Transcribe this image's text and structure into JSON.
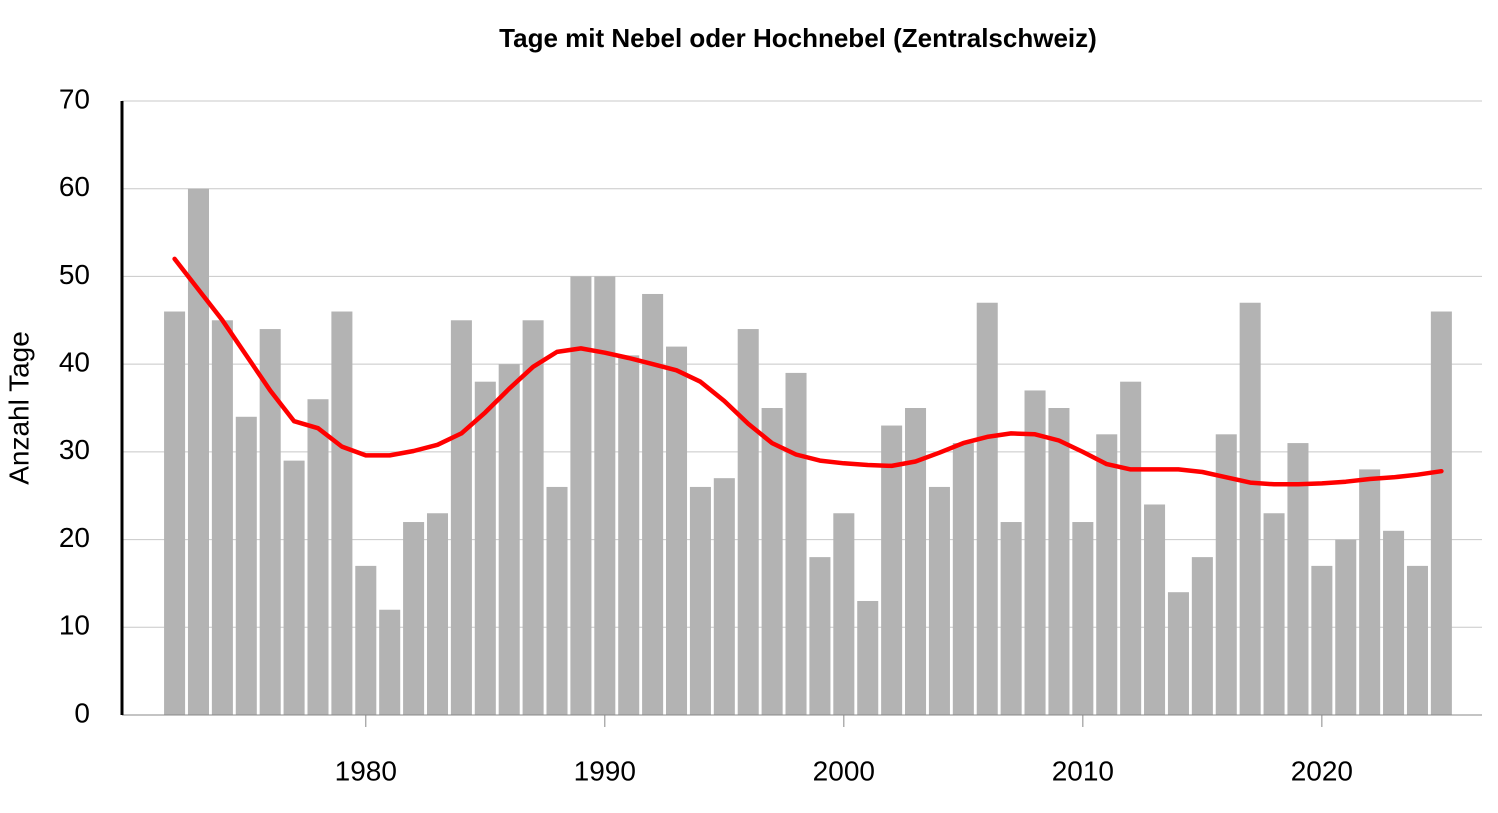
{
  "chart_data": {
    "type": "bar",
    "title": "Tage mit Nebel oder Hochnebel (Zentralschweiz)",
    "y_label": "Anzahl Tage",
    "x": [
      1972,
      1973,
      1974,
      1975,
      1976,
      1977,
      1978,
      1979,
      1980,
      1981,
      1982,
      1983,
      1984,
      1985,
      1986,
      1987,
      1988,
      1989,
      1990,
      1991,
      1992,
      1993,
      1994,
      1995,
      1996,
      1997,
      1998,
      1999,
      2000,
      2001,
      2002,
      2003,
      2004,
      2005,
      2006,
      2007,
      2008,
      2009,
      2010,
      2011,
      2012,
      2013,
      2014,
      2015,
      2016,
      2017,
      2018,
      2019,
      2020,
      2021,
      2022,
      2023,
      2024,
      2025
    ],
    "series": [
      {
        "type": "bar",
        "color": "#b3b3b3",
        "values": [
          46,
          60,
          45,
          34,
          44,
          29,
          36,
          46,
          17,
          12,
          22,
          23,
          45,
          38,
          40,
          45,
          26,
          50,
          50,
          41,
          48,
          42,
          26,
          27,
          44,
          35,
          39,
          18,
          23,
          13,
          33,
          35,
          26,
          31,
          47,
          22,
          37,
          35,
          22,
          32,
          38,
          24,
          14,
          18,
          32,
          47,
          23,
          31,
          17,
          20,
          28,
          21,
          17,
          46
        ]
      },
      {
        "type": "line",
        "color": "#ff0000",
        "values": [
          52.0,
          48.5,
          45.0,
          41.0,
          37.0,
          33.5,
          32.7,
          30.6,
          29.6,
          29.6,
          30.1,
          30.8,
          32.1,
          34.5,
          37.2,
          39.7,
          41.4,
          41.8,
          41.3,
          40.7,
          40.0,
          39.3,
          38.0,
          35.8,
          33.2,
          31.0,
          29.7,
          29.0,
          28.7,
          28.5,
          28.4,
          28.9,
          29.9,
          31.0,
          31.7,
          32.1,
          32.0,
          31.3,
          30.0,
          28.6,
          28.0,
          28.0,
          28.0,
          27.7,
          27.1,
          26.5,
          26.3,
          26.3,
          26.4,
          26.6,
          26.9,
          27.1,
          27.4,
          27.8
        ]
      }
    ],
    "xlim": [
      1969.8,
      2026.7
    ],
    "xticks": [
      1980,
      1990,
      2000,
      2010,
      2020
    ],
    "ylim": [
      0,
      70
    ],
    "yticks": [
      0,
      10,
      20,
      30,
      40,
      50,
      60,
      70
    ],
    "grid": true
  }
}
